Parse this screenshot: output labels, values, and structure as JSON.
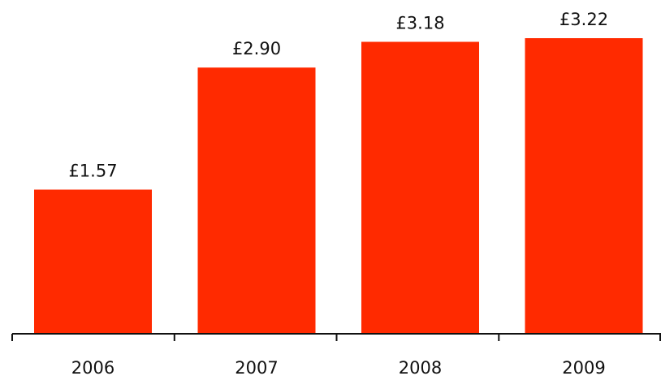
{
  "chart_data": {
    "type": "bar",
    "title": "",
    "xlabel": "",
    "ylabel": "",
    "categories": [
      "2006",
      "2007",
      "2008",
      "2009"
    ],
    "values": [
      1.57,
      2.9,
      3.18,
      3.22
    ],
    "value_labels": [
      "£1.57",
      "£2.90",
      "£3.18",
      "£3.22"
    ],
    "ylim": [
      0,
      3.22
    ],
    "grid": false,
    "legend": "none",
    "colors": {
      "bar": "#ff2a00",
      "axis": "#111111",
      "text": "#111111"
    }
  }
}
